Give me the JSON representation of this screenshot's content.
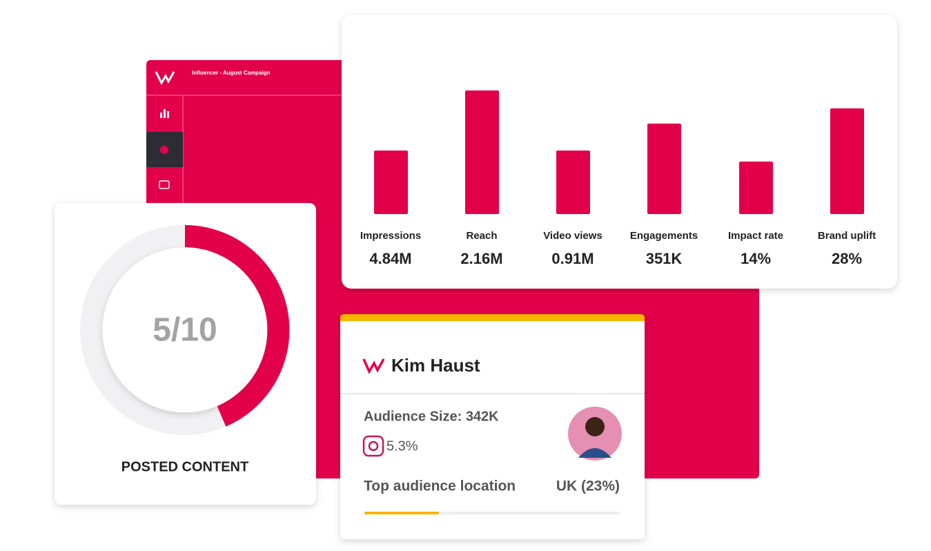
{
  "dashboard": {
    "title": "Influencer - August Campaign"
  },
  "metrics": [
    {
      "label": "Impressions",
      "value": "4.84M"
    },
    {
      "label": "Reach",
      "value": "2.16M"
    },
    {
      "label": "Video views",
      "value": "0.91M"
    },
    {
      "label": "Engagements",
      "value": "351K"
    },
    {
      "label": "Impact rate",
      "value": "14%"
    },
    {
      "label": "Brand uplift",
      "value": "28%"
    }
  ],
  "posted_content": {
    "count": "5/10",
    "label": "POSTED CONTENT"
  },
  "profile": {
    "name": "Kim Haust",
    "audience_size": "Audience Size: 342K",
    "engagement": "5.3%",
    "location_label": "Top audience location",
    "location_value": "UK (23%)"
  }
}
